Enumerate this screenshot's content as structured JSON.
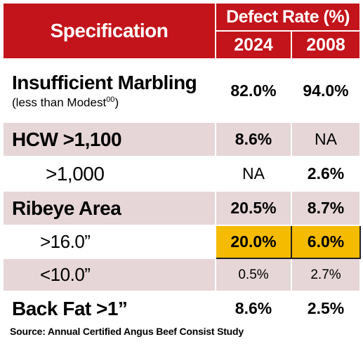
{
  "header": {
    "spec_label": "Specification",
    "group_label": "Defect Rate (%)",
    "years": [
      "2024",
      "2008"
    ]
  },
  "rows": [
    {
      "label": "Insufficient Marbling",
      "sublabel": "(less than Modest",
      "sublabel_sup": "00",
      "sublabel_end": ")",
      "v2024": "82.0%",
      "v2008": "94.0%"
    },
    {
      "label": "HCW >1,100",
      "v2024": "8.6%",
      "v2008": "NA"
    },
    {
      "label": ">1,000",
      "v2024": "NA",
      "v2008": "2.6%"
    },
    {
      "label": "Ribeye Area",
      "v2024": "20.5%",
      "v2008": "8.7%"
    },
    {
      "label": ">16.0”",
      "v2024": "20.0%",
      "v2008": "6.0%"
    },
    {
      "label": "<10.0”",
      "v2024": "0.5%",
      "v2008": "2.7%"
    },
    {
      "label": "Back Fat >1”",
      "v2024": "8.6%",
      "v2008": "2.5%"
    }
  ],
  "source": "Source: Annual Certified Angus Beef Consist Study",
  "colors": {
    "header_red": "#c3141b",
    "band_pink": "#e6d6d8",
    "highlight": "#f5bb00"
  }
}
